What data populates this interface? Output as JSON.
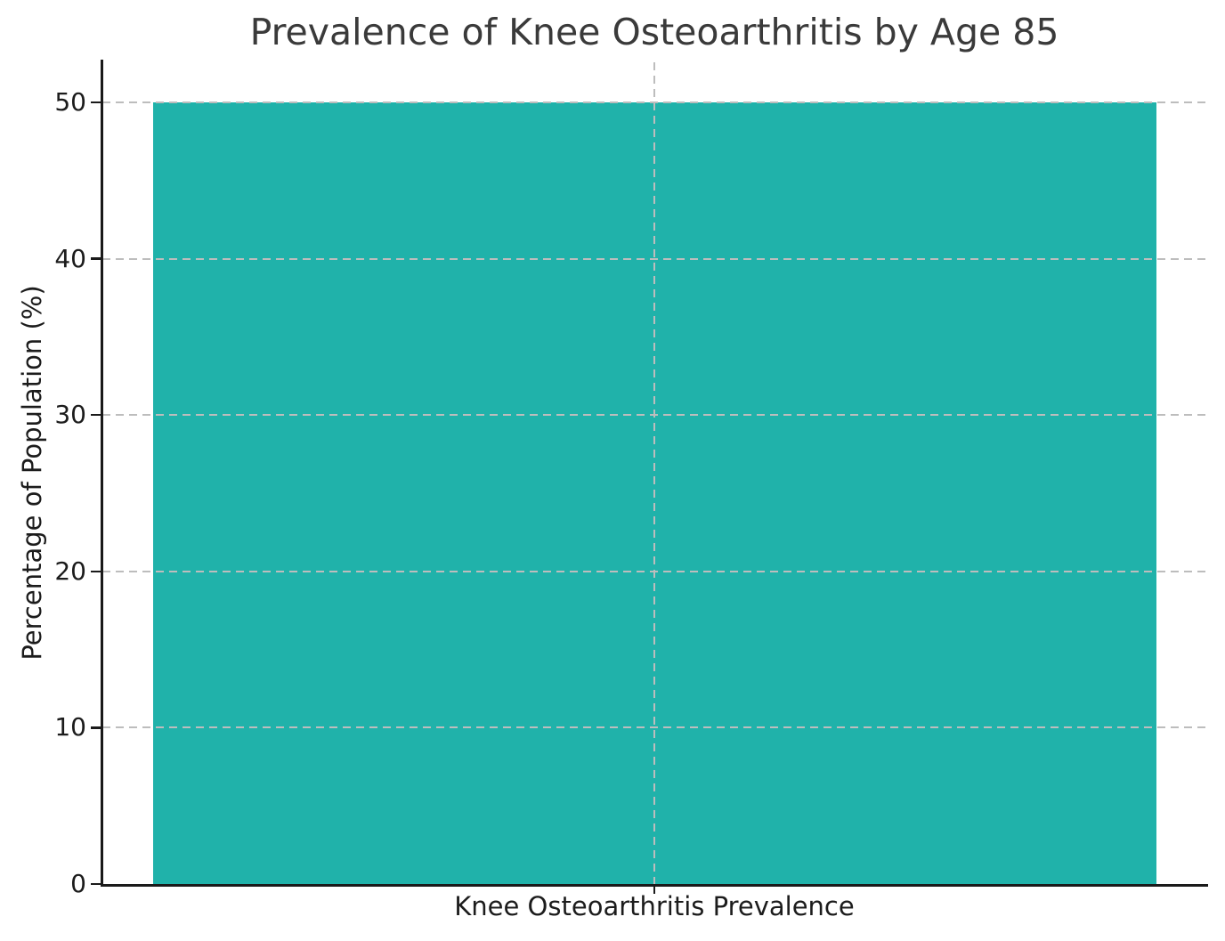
{
  "chart_data": {
    "type": "bar",
    "title": "Prevalence of Knee Osteoarthritis by Age 85",
    "categories": [
      "Knee Osteoarthritis Prevalence"
    ],
    "values": [
      50
    ],
    "xlabel": "",
    "ylabel": "Percentage of Population (%)",
    "ylim": [
      0,
      52.56
    ],
    "yticks": [
      0,
      10,
      20,
      30,
      40,
      50
    ],
    "bar_color": "#20b2aa",
    "grid": {
      "visible": true,
      "style": "dashed",
      "color": "#bdbdbd",
      "horizontal_at": [
        10,
        20,
        30,
        40,
        50
      ],
      "vertical_at_category_center": true,
      "drawn_above_bars": true
    },
    "legend": {
      "visible": false
    }
  },
  "style": {
    "title_color": "#3a3a3a",
    "text_color": "#1c1c1c",
    "spine_color": "#1a1a1a",
    "background": "#ffffff"
  }
}
